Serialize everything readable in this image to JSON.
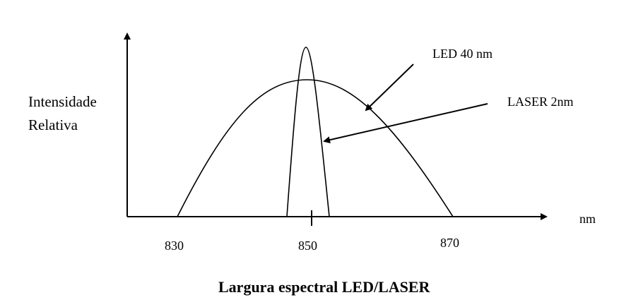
{
  "y_label": {
    "line1": "Intensidade",
    "line2": "Relativa"
  },
  "x_unit": "nm",
  "x_ticks": [
    "830",
    "850",
    "870"
  ],
  "annotations": {
    "led": "LED  40 nm",
    "laser": "LASER  2nm"
  },
  "title": "Largura espectral LED/LASER",
  "curves": {
    "led": {
      "center_nm": 850,
      "from_nm": 830,
      "to_nm": 870
    },
    "laser": {
      "center_nm": 849.5,
      "from_nm": 846.5,
      "to_nm": 852.5
    }
  },
  "colors": {
    "line": "#000000",
    "background": "#ffffff"
  }
}
